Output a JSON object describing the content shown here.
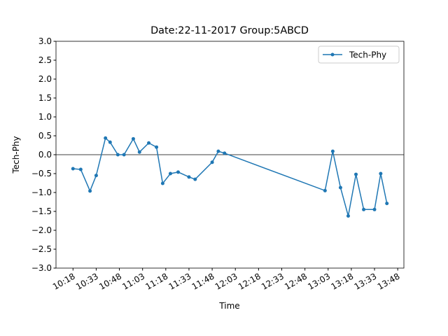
{
  "chart_data": {
    "type": "line",
    "title": "Date:22-11-2017 Group:5ABCD",
    "xlabel": "Time",
    "ylabel": "Tech-Phy",
    "x": [
      "10:18",
      "10:23",
      "10:29",
      "10:33",
      "10:39",
      "10:42",
      "10:47",
      "10:51",
      "10:57",
      "11:01",
      "11:07",
      "11:12",
      "11:16",
      "11:21",
      "11:26",
      "11:33",
      "11:37",
      "11:48",
      "11:52",
      "11:56",
      "13:01",
      "13:06",
      "13:11",
      "13:16",
      "13:21",
      "13:26",
      "13:33",
      "13:37",
      "13:41"
    ],
    "series": [
      {
        "name": "Tech-Phy",
        "color": "#1f77b4",
        "values": [
          -0.37,
          -0.39,
          -0.96,
          -0.55,
          0.44,
          0.33,
          0.0,
          0.0,
          0.42,
          0.07,
          0.31,
          0.2,
          -0.76,
          -0.5,
          -0.46,
          -0.59,
          -0.65,
          -0.2,
          0.09,
          0.04,
          -0.95,
          0.09,
          -0.87,
          -1.62,
          -0.52,
          -1.45,
          -1.45,
          -0.5,
          -1.29
        ]
      }
    ],
    "xlim": [
      "10:07",
      "13:52"
    ],
    "xticks": [
      "10:18",
      "10:33",
      "10:48",
      "11:03",
      "11:18",
      "11:33",
      "11:48",
      "12:03",
      "12:18",
      "12:33",
      "12:48",
      "13:03",
      "13:18",
      "13:33",
      "13:48"
    ],
    "ylim": [
      -3,
      3
    ],
    "yticks": [
      {
        "value": -3,
        "label": "−3.0"
      },
      {
        "value": -2.5,
        "label": "−2.5"
      },
      {
        "value": -2,
        "label": "−2.0"
      },
      {
        "value": -1.5,
        "label": "−1.5"
      },
      {
        "value": -1,
        "label": "−1.0"
      },
      {
        "value": -0.5,
        "label": "−0.5"
      },
      {
        "value": 0,
        "label": "0.0"
      },
      {
        "value": 0.5,
        "label": "0.5"
      },
      {
        "value": 1,
        "label": "1.0"
      },
      {
        "value": 1.5,
        "label": "1.5"
      },
      {
        "value": 2,
        "label": "2.0"
      },
      {
        "value": 2.5,
        "label": "2.5"
      },
      {
        "value": 3,
        "label": "3.0"
      }
    ],
    "hline": 0,
    "legend": "upper right",
    "grid": false
  }
}
